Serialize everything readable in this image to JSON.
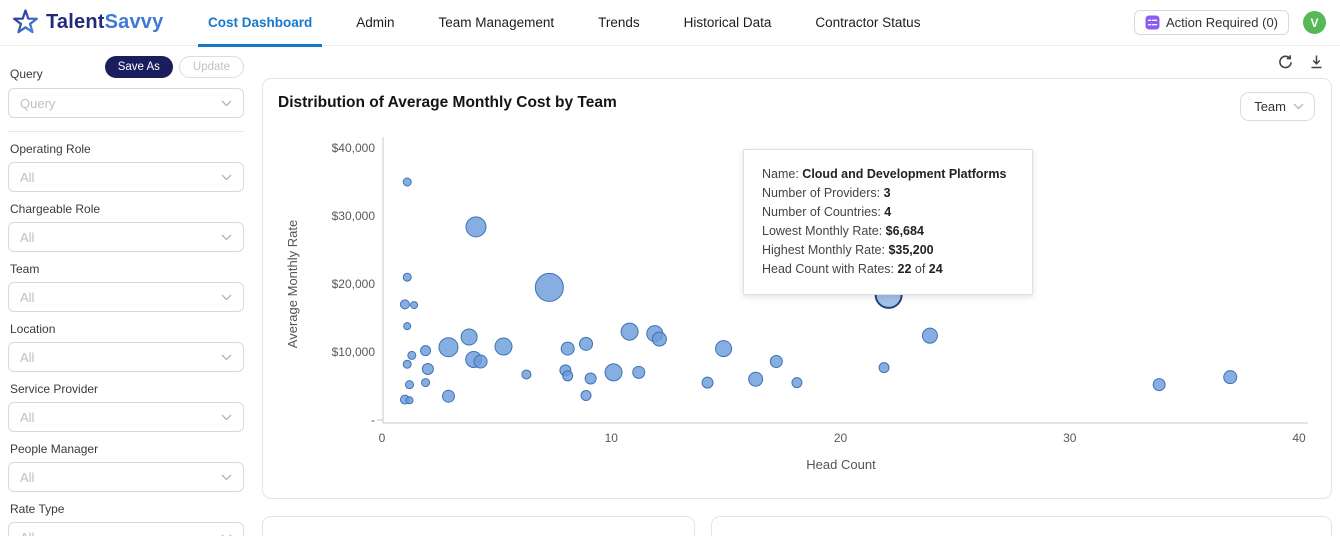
{
  "header": {
    "brand": {
      "part1": "Talent",
      "part2": "Savvy"
    },
    "nav": [
      {
        "label": "Cost Dashboard",
        "active": true
      },
      {
        "label": "Admin",
        "active": false
      },
      {
        "label": "Team Management",
        "active": false
      },
      {
        "label": "Trends",
        "active": false
      },
      {
        "label": "Historical Data",
        "active": false
      },
      {
        "label": "Contractor Status",
        "active": false
      }
    ],
    "action_required_label": "Action Required (0)",
    "avatar_initial": "V",
    "accent_color": "#1778c8",
    "action_icon_color": "#8b5cf6",
    "avatar_color": "#57b857"
  },
  "sidebar": {
    "query_label": "Query",
    "save_as_label": "Save As",
    "update_label": "Update",
    "query_placeholder": "Query",
    "filters": [
      {
        "label": "Operating Role",
        "value": "All"
      },
      {
        "label": "Chargeable Role",
        "value": "All"
      },
      {
        "label": "Team",
        "value": "All"
      },
      {
        "label": "Location",
        "value": "All"
      },
      {
        "label": "Service Provider",
        "value": "All"
      },
      {
        "label": "People Manager",
        "value": "All"
      },
      {
        "label": "Rate Type",
        "value": "All"
      }
    ]
  },
  "chart": {
    "group_by_label": "Team",
    "bubble_fill": "#6d9cda",
    "bubble_stroke": "#3e72b6",
    "selected_fill": "#a2c1e8",
    "selected_stroke": "#24427c"
  },
  "chart_data": {
    "type": "scatter",
    "title": "Distribution of Average Monthly Cost by Team",
    "xlabel": "Head Count",
    "ylabel": "Average Monthly Rate",
    "xlim": [
      0,
      40
    ],
    "ylim": [
      0,
      40000
    ],
    "x_ticks": [
      0,
      10,
      20,
      30,
      40
    ],
    "y_ticks": [
      {
        "label": "$40,000",
        "value": 40000
      },
      {
        "label": "$30,000",
        "value": 30000
      },
      {
        "label": "$20,000",
        "value": 20000
      },
      {
        "label": "$10,000",
        "value": 10000
      },
      {
        "label": "-",
        "value": 0
      }
    ],
    "points": [
      {
        "x": 1.1,
        "y": 35000,
        "r": 4
      },
      {
        "x": 4.1,
        "y": 28400,
        "r": 10
      },
      {
        "x": 1.1,
        "y": 21000,
        "r": 4
      },
      {
        "x": 1.0,
        "y": 17000,
        "r": 4.5
      },
      {
        "x": 1.4,
        "y": 16900,
        "r": 3.5
      },
      {
        "x": 1.1,
        "y": 13800,
        "r": 3.5
      },
      {
        "x": 1.3,
        "y": 9500,
        "r": 4
      },
      {
        "x": 1.9,
        "y": 10200,
        "r": 5
      },
      {
        "x": 1.1,
        "y": 8200,
        "r": 4
      },
      {
        "x": 2.0,
        "y": 7500,
        "r": 5.5
      },
      {
        "x": 1.2,
        "y": 5200,
        "r": 4
      },
      {
        "x": 1.9,
        "y": 5500,
        "r": 4
      },
      {
        "x": 1.0,
        "y": 3000,
        "r": 4.5
      },
      {
        "x": 1.2,
        "y": 2900,
        "r": 3.5
      },
      {
        "x": 2.9,
        "y": 10700,
        "r": 9.5
      },
      {
        "x": 3.8,
        "y": 12200,
        "r": 8
      },
      {
        "x": 4.0,
        "y": 8900,
        "r": 8
      },
      {
        "x": 4.3,
        "y": 8600,
        "r": 6.5
      },
      {
        "x": 2.9,
        "y": 3500,
        "r": 6
      },
      {
        "x": 5.3,
        "y": 10800,
        "r": 8.5
      },
      {
        "x": 6.3,
        "y": 6700,
        "r": 4.5
      },
      {
        "x": 7.3,
        "y": 19500,
        "r": 14
      },
      {
        "x": 8.1,
        "y": 10500,
        "r": 6.5
      },
      {
        "x": 8.9,
        "y": 11200,
        "r": 6.5
      },
      {
        "x": 8.0,
        "y": 7300,
        "r": 5.5
      },
      {
        "x": 8.1,
        "y": 6500,
        "r": 5
      },
      {
        "x": 9.1,
        "y": 6100,
        "r": 5.5
      },
      {
        "x": 8.9,
        "y": 3600,
        "r": 5
      },
      {
        "x": 10.8,
        "y": 13000,
        "r": 8.5
      },
      {
        "x": 11.9,
        "y": 12700,
        "r": 8
      },
      {
        "x": 12.1,
        "y": 11900,
        "r": 7
      },
      {
        "x": 10.1,
        "y": 7000,
        "r": 8.5
      },
      {
        "x": 11.2,
        "y": 7000,
        "r": 6
      },
      {
        "x": 14.9,
        "y": 10500,
        "r": 8
      },
      {
        "x": 14.2,
        "y": 5500,
        "r": 5.5
      },
      {
        "x": 16.3,
        "y": 6000,
        "r": 7
      },
      {
        "x": 17.2,
        "y": 8600,
        "r": 6
      },
      {
        "x": 18.1,
        "y": 5500,
        "r": 5
      },
      {
        "x": 21.9,
        "y": 7700,
        "r": 5
      },
      {
        "x": 23.9,
        "y": 12400,
        "r": 7.5
      },
      {
        "x": 33.9,
        "y": 5200,
        "r": 6
      },
      {
        "x": 37.0,
        "y": 6300,
        "r": 6.5
      }
    ],
    "selected_point": {
      "x": 22.1,
      "y": 18400,
      "r": 13,
      "name": "Cloud and Development Platforms"
    }
  },
  "tooltip": {
    "rows": [
      {
        "label": "Name: ",
        "parts": [
          {
            "text": "Cloud and Development Platforms",
            "bold": true
          }
        ]
      },
      {
        "label": "Number of Providers: ",
        "parts": [
          {
            "text": "3",
            "bold": true
          }
        ]
      },
      {
        "label": "Number of Countries: ",
        "parts": [
          {
            "text": "4",
            "bold": true
          }
        ]
      },
      {
        "label": "Lowest Monthly Rate: ",
        "parts": [
          {
            "text": "$6,684",
            "bold": true
          }
        ]
      },
      {
        "label": "Highest Monthly Rate: ",
        "parts": [
          {
            "text": "$35,200",
            "bold": true
          }
        ]
      },
      {
        "label": "Head Count with Rates: ",
        "parts": [
          {
            "text": "22",
            "bold": true
          },
          {
            "text": " of ",
            "bold": false
          },
          {
            "text": "24",
            "bold": true
          }
        ]
      }
    ]
  }
}
